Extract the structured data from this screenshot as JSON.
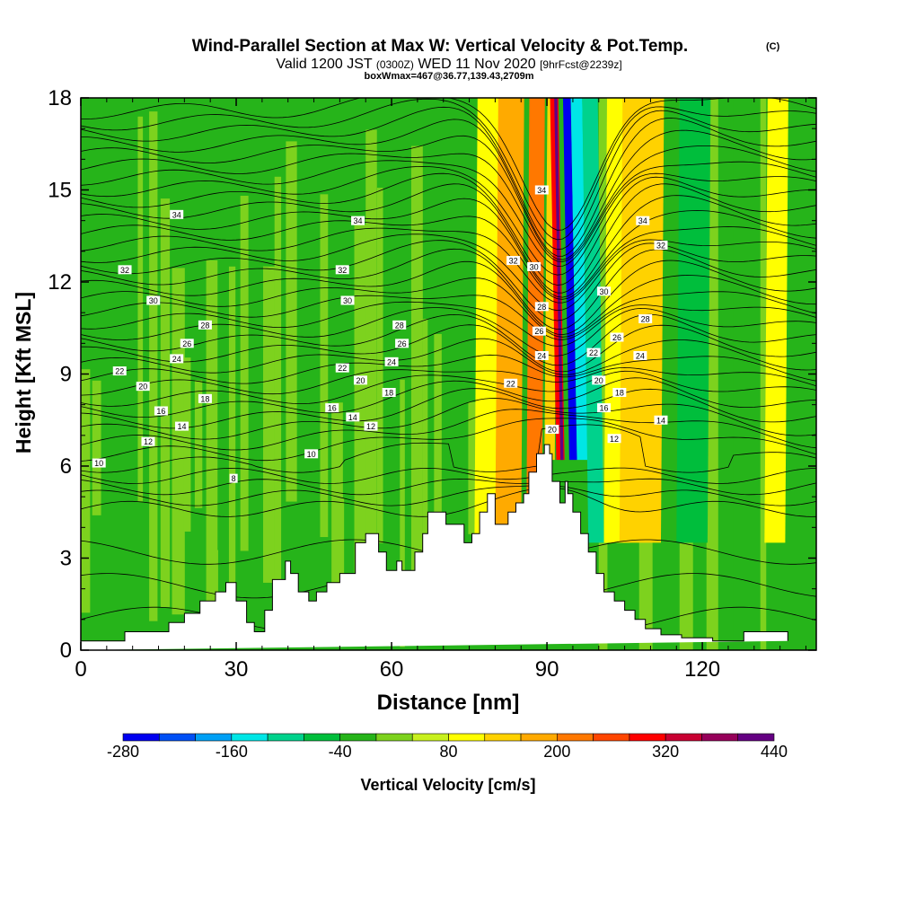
{
  "header": {
    "title": "Wind-Parallel Section at Max W: Vertical Velocity & Pot.Temp.",
    "title_mark": "(C)",
    "valid_prefix": "Valid 1200 JST",
    "valid_small": "(0300Z)",
    "valid_date": "WED 11 Nov 2020",
    "forecast": "[9hrFcst@2239z]",
    "boxwmax": "boxWmax=467@36.77,139.43,2709m"
  },
  "chart_data": {
    "type": "heatmap",
    "xlabel": "Distance [nm]",
    "ylabel": "Height [Kft MSL]",
    "xlim": [
      0,
      142
    ],
    "ylim": [
      0,
      18
    ],
    "x_ticks": [
      0,
      30,
      60,
      90,
      120
    ],
    "y_ticks": [
      0,
      3,
      6,
      9,
      12,
      15,
      18
    ],
    "x_tick_labels": [
      "0",
      "30",
      "60",
      "90",
      "120"
    ],
    "y_tick_labels": [
      "0",
      "3",
      "6",
      "9",
      "12",
      "15",
      "18"
    ],
    "colorbar": {
      "label": "Vertical Velocity [cm/s]",
      "tick_labels": [
        "-280",
        "-160",
        "-40",
        "80",
        "200",
        "320",
        "440"
      ],
      "bounds": [
        -280,
        -240,
        -200,
        -160,
        -120,
        -80,
        -40,
        0,
        40,
        80,
        120,
        160,
        200,
        240,
        280,
        320,
        360,
        400,
        440
      ],
      "colors": [
        "#0000f0",
        "#0050f5",
        "#00a0f5",
        "#00e6e6",
        "#00d28c",
        "#00be3c",
        "#26b41a",
        "#7dd21e",
        "#c8f01e",
        "#ffff00",
        "#ffd200",
        "#ffaa00",
        "#ff7800",
        "#ff4600",
        "#ff0000",
        "#c80032",
        "#96005a",
        "#640082"
      ]
    },
    "velocity_bands": [
      {
        "x": [
          86,
          89
        ],
        "value": 200
      },
      {
        "x": [
          89.5,
          91.5
        ],
        "value": 120
      },
      {
        "x": [
          91.8,
          93.4
        ],
        "value": 300
      },
      {
        "x": [
          92.6,
          93.2
        ],
        "value": 440
      },
      {
        "x": [
          93.5,
          94.3
        ],
        "value": -40
      },
      {
        "x": [
          94.3,
          95.8
        ],
        "value": -260
      },
      {
        "x": [
          95.8,
          98
        ],
        "value": -160
      },
      {
        "x": [
          98,
          101
        ],
        "value": -120
      },
      {
        "x": [
          101,
          106
        ],
        "value": 80
      },
      {
        "x": [
          104,
          112
        ],
        "value": 120
      },
      {
        "x": [
          115,
          121
        ],
        "value": -80
      },
      {
        "x": [
          132,
          136
        ],
        "value": 80
      },
      {
        "x": [
          76,
          84
        ],
        "value": 80
      },
      {
        "x": [
          80,
          85
        ],
        "value": 160
      }
    ],
    "terrain": {
      "x": [
        0,
        8.5,
        8.5,
        17,
        17,
        20,
        20,
        23,
        23,
        26,
        26,
        28,
        28,
        30,
        30,
        32,
        32,
        33.5,
        33.5,
        35.5,
        35.5,
        37,
        37,
        39.5,
        39.5,
        40.5,
        40.5,
        42,
        42,
        44,
        44,
        45.5,
        45.5,
        47.5,
        47.5,
        50,
        50,
        53,
        53,
        55,
        55,
        57.5,
        57.5,
        59,
        59,
        61,
        61,
        62,
        62,
        64.5,
        64.5,
        66,
        66,
        67,
        67,
        68,
        68,
        70.5,
        70.5,
        74,
        74,
        75.5,
        75.5,
        77,
        77,
        78.5,
        78.5,
        80,
        80,
        82.5,
        82.5,
        84,
        84,
        85.5,
        85.5,
        86.5,
        86.5,
        88,
        88,
        89.5,
        89.5,
        90.5,
        90.5,
        91,
        91,
        92.5,
        92.5,
        93.5,
        93.5,
        94,
        94,
        95,
        95,
        96.5,
        96.5,
        98,
        98,
        99.5,
        99.5,
        101,
        101,
        103,
        103,
        105,
        105,
        107,
        107,
        109,
        109,
        112,
        112,
        116,
        116,
        122,
        122,
        128,
        128,
        130,
        130,
        136.5,
        136.5,
        142
      ],
      "y": [
        0.3,
        0.3,
        0.6,
        0.6,
        0.9,
        0.9,
        1.2,
        1.2,
        1.6,
        1.6,
        1.9,
        1.9,
        2.2,
        2.2,
        1.6,
        1.6,
        0.9,
        0.9,
        0.6,
        0.6,
        1.3,
        1.3,
        2.3,
        2.3,
        2.9,
        2.9,
        2.5,
        2.5,
        1.9,
        1.9,
        1.6,
        1.6,
        1.9,
        1.9,
        2.2,
        2.2,
        2.5,
        2.5,
        3.5,
        3.5,
        3.8,
        3.8,
        3.2,
        3.2,
        2.6,
        2.6,
        2.9,
        2.9,
        2.6,
        2.6,
        3.2,
        3.2,
        3.8,
        3.8,
        4.5,
        4.5,
        4.5,
        4.5,
        4.1,
        4.1,
        3.5,
        3.5,
        3.8,
        3.8,
        4.5,
        4.5,
        5.1,
        5.1,
        4.1,
        4.1,
        4.5,
        4.5,
        4.8,
        4.8,
        5.1,
        5.1,
        5.8,
        5.8,
        6.4,
        6.4,
        6.7,
        6.7,
        6.4,
        6.4,
        5.5,
        5.5,
        4.8,
        4.8,
        5.5,
        5.5,
        5.1,
        5.1,
        4.5,
        4.5,
        3.8,
        3.8,
        3.2,
        3.2,
        2.5,
        2.5,
        1.9,
        1.9,
        1.6,
        1.6,
        1.3,
        1.3,
        1.0,
        1.0,
        0.7,
        0.7,
        0.5,
        0.5,
        0.4,
        0.4,
        0.3,
        0.3,
        0.6,
        0.6,
        0.6,
        0.6,
        0.3
      ]
    },
    "theta_contours": {
      "levels": [
        8,
        10,
        12,
        14,
        16,
        18,
        20,
        22,
        24,
        26,
        28,
        30,
        32,
        34
      ],
      "labels": [
        {
          "text": "10",
          "x": 3.5,
          "y": 6.1
        },
        {
          "text": "12",
          "x": 13,
          "y": 6.8
        },
        {
          "text": "14",
          "x": 19.5,
          "y": 7.3
        },
        {
          "text": "16",
          "x": 15.5,
          "y": 7.8
        },
        {
          "text": "18",
          "x": 24,
          "y": 8.2
        },
        {
          "text": "20",
          "x": 12,
          "y": 8.6
        },
        {
          "text": "22",
          "x": 7.5,
          "y": 9.1
        },
        {
          "text": "24",
          "x": 18.5,
          "y": 9.5
        },
        {
          "text": "26",
          "x": 20.5,
          "y": 10.0
        },
        {
          "text": "28",
          "x": 24,
          "y": 10.6
        },
        {
          "text": "30",
          "x": 14,
          "y": 11.4
        },
        {
          "text": "32",
          "x": 8.5,
          "y": 12.4
        },
        {
          "text": "34",
          "x": 18.5,
          "y": 14.2
        },
        {
          "text": "8",
          "x": 29.5,
          "y": 5.6
        },
        {
          "text": "10",
          "x": 44.5,
          "y": 6.4
        },
        {
          "text": "12",
          "x": 56,
          "y": 7.3
        },
        {
          "text": "14",
          "x": 52.5,
          "y": 7.6
        },
        {
          "text": "16",
          "x": 48.5,
          "y": 7.9
        },
        {
          "text": "18",
          "x": 59.5,
          "y": 8.4
        },
        {
          "text": "20",
          "x": 54,
          "y": 8.8
        },
        {
          "text": "22",
          "x": 50.5,
          "y": 9.2
        },
        {
          "text": "24",
          "x": 60,
          "y": 9.4
        },
        {
          "text": "26",
          "x": 62,
          "y": 10.0
        },
        {
          "text": "28",
          "x": 61.5,
          "y": 10.6
        },
        {
          "text": "30",
          "x": 51.5,
          "y": 11.4
        },
        {
          "text": "32",
          "x": 50.5,
          "y": 12.4
        },
        {
          "text": "34",
          "x": 53.5,
          "y": 14.0
        },
        {
          "text": "22",
          "x": 83,
          "y": 8.7
        },
        {
          "text": "24",
          "x": 89,
          "y": 9.6
        },
        {
          "text": "26",
          "x": 88.5,
          "y": 10.4
        },
        {
          "text": "28",
          "x": 89,
          "y": 11.2
        },
        {
          "text": "30",
          "x": 87.5,
          "y": 12.5
        },
        {
          "text": "32",
          "x": 83.5,
          "y": 12.7
        },
        {
          "text": "34",
          "x": 89,
          "y": 15.0
        },
        {
          "text": "20",
          "x": 91,
          "y": 7.2
        },
        {
          "text": "20",
          "x": 100,
          "y": 8.8
        },
        {
          "text": "22",
          "x": 99,
          "y": 9.7
        },
        {
          "text": "16",
          "x": 101,
          "y": 7.9
        },
        {
          "text": "18",
          "x": 104,
          "y": 8.4
        },
        {
          "text": "12",
          "x": 103,
          "y": 6.9
        },
        {
          "text": "14",
          "x": 112,
          "y": 7.5
        },
        {
          "text": "24",
          "x": 108,
          "y": 9.6
        },
        {
          "text": "26",
          "x": 103.5,
          "y": 10.2
        },
        {
          "text": "28",
          "x": 109,
          "y": 10.8
        },
        {
          "text": "30",
          "x": 101,
          "y": 11.7
        },
        {
          "text": "32",
          "x": 112,
          "y": 13.2
        },
        {
          "text": "34",
          "x": 108.5,
          "y": 14.0
        }
      ]
    }
  }
}
